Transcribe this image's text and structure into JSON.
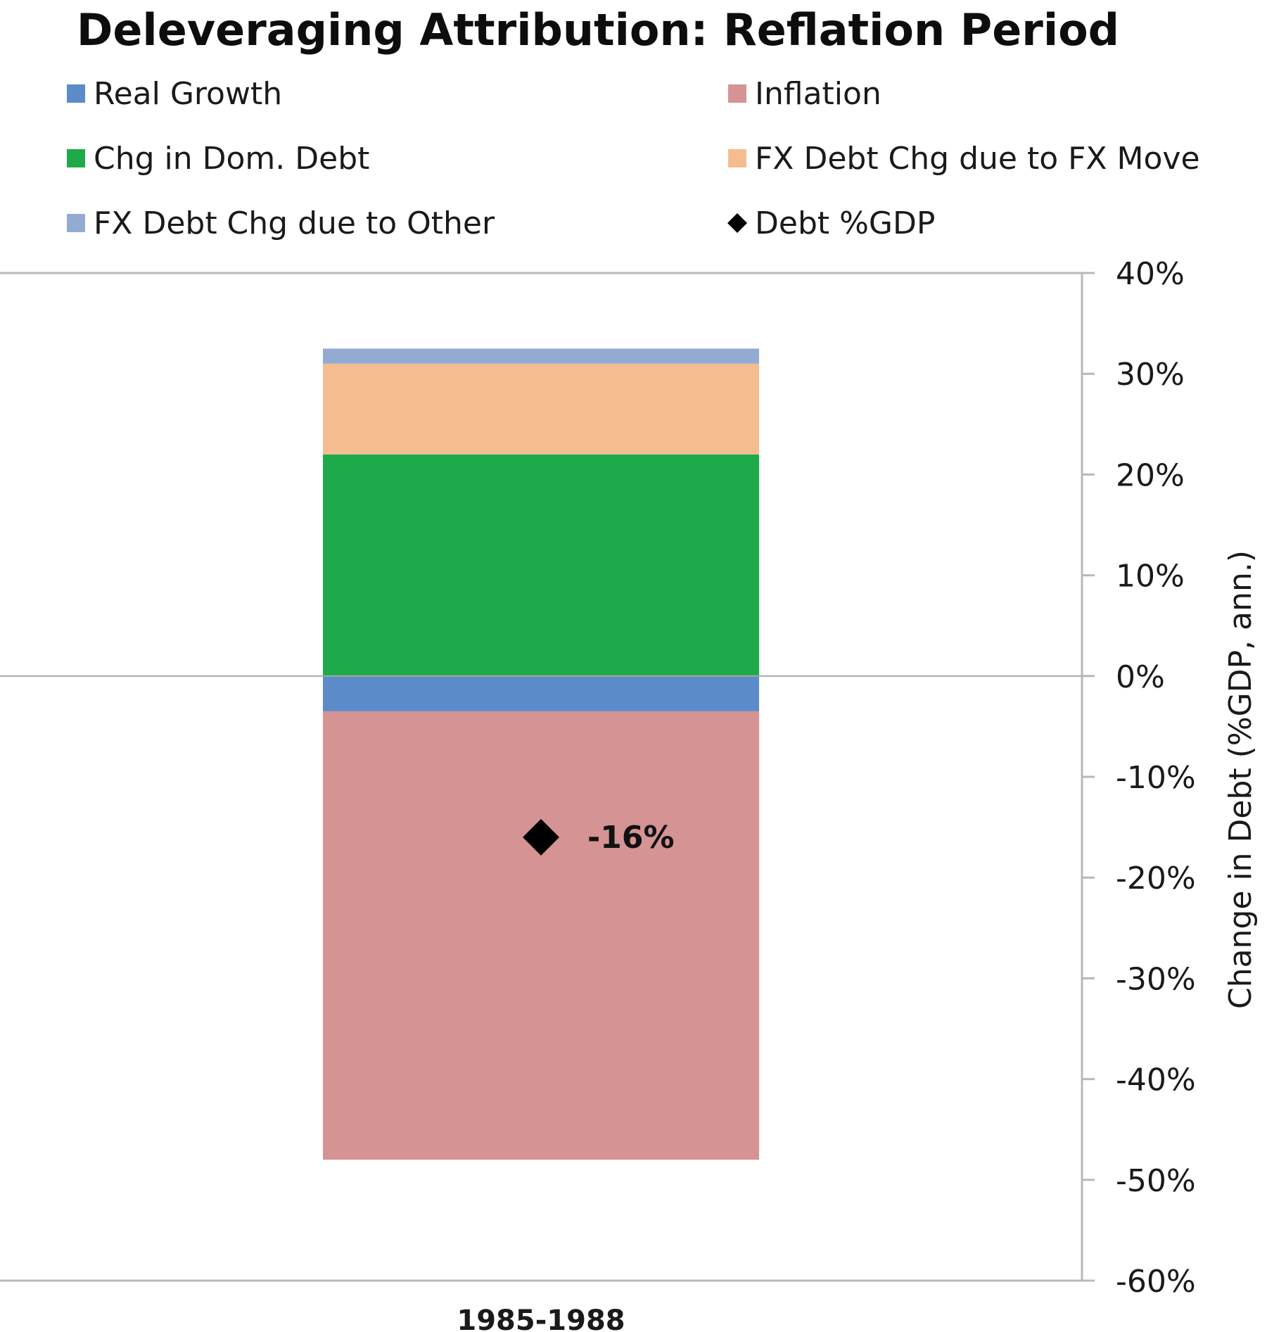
{
  "chart_data": {
    "type": "bar",
    "stacked": true,
    "title": "Deleveraging Attribution: Reflation Period",
    "categories": [
      "1985-1988"
    ],
    "series": [
      {
        "name": "Real Growth",
        "values": [
          -3.5
        ],
        "color": "#5b8bc9"
      },
      {
        "name": "Inflation",
        "values": [
          -44.5
        ],
        "color": "#d69393"
      },
      {
        "name": "Chg in Dom. Debt",
        "values": [
          22
        ],
        "color": "#1eaa4a"
      },
      {
        "name": "FX Debt Chg due to FX Move",
        "values": [
          9
        ],
        "color": "#f5bd8f"
      },
      {
        "name": "FX Debt Chg due to Other",
        "values": [
          1.5
        ],
        "color": "#93abd3"
      }
    ],
    "markers": [
      {
        "name": "Debt %GDP",
        "values": [
          -16
        ],
        "labels": [
          "-16%"
        ],
        "color": "#000000",
        "shape": "diamond"
      }
    ],
    "legend_order": [
      "Real Growth",
      "Inflation",
      "Chg in Dom. Debt",
      "FX Debt Chg due to FX Move",
      "FX Debt Chg due to Other",
      "Debt %GDP"
    ],
    "ylabel": "Change in Debt (%GDP, ann.)",
    "ylim": [
      -60,
      40
    ],
    "yticks": [
      40,
      30,
      20,
      10,
      0,
      -10,
      -20,
      -30,
      -40,
      -50,
      -60
    ],
    "ytick_labels": [
      "40%",
      "30%",
      "20%",
      "10%",
      "0%",
      "-10%",
      "-20%",
      "-30%",
      "-40%",
      "-50%",
      "-60%"
    ],
    "yaxis_side": "right",
    "grid": false,
    "legend_placement": "top"
  }
}
